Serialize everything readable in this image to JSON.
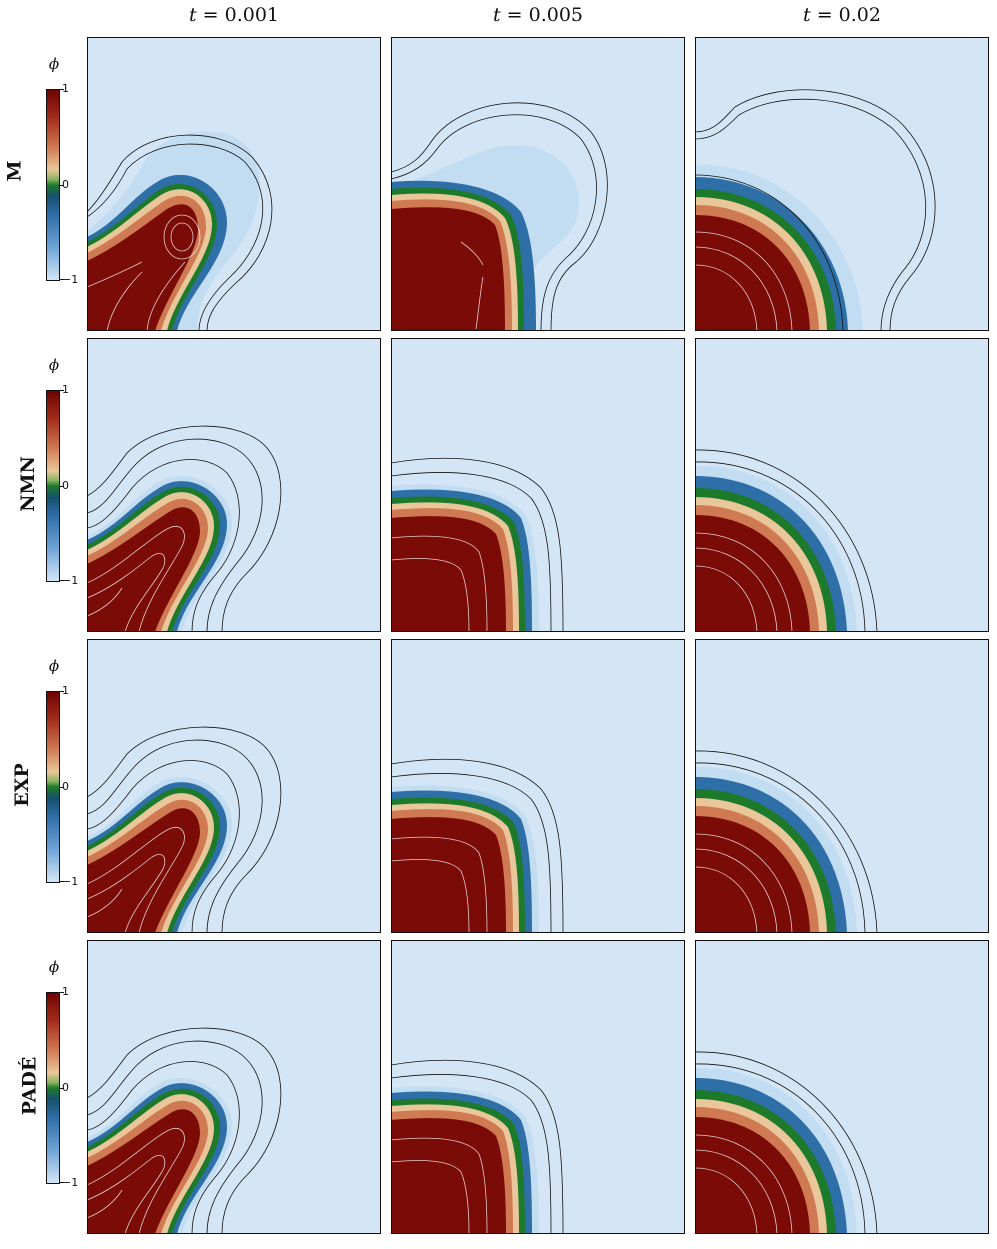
{
  "columns": [
    {
      "var": "t",
      "label": " = 0.001"
    },
    {
      "var": "t",
      "label": " = 0.005"
    },
    {
      "var": "t",
      "label": " = 0.02"
    }
  ],
  "rows": [
    "M",
    "NMN",
    "EXP",
    "PADÉ"
  ],
  "colorbar": {
    "symbol": "ϕ",
    "ticks": [
      "1",
      "0",
      "−1"
    ],
    "colors": {
      "max": "#6e0303",
      "mid": "#1d7a2a",
      "min": "#d3e6f6",
      "background": "#d4e6f6"
    }
  }
}
